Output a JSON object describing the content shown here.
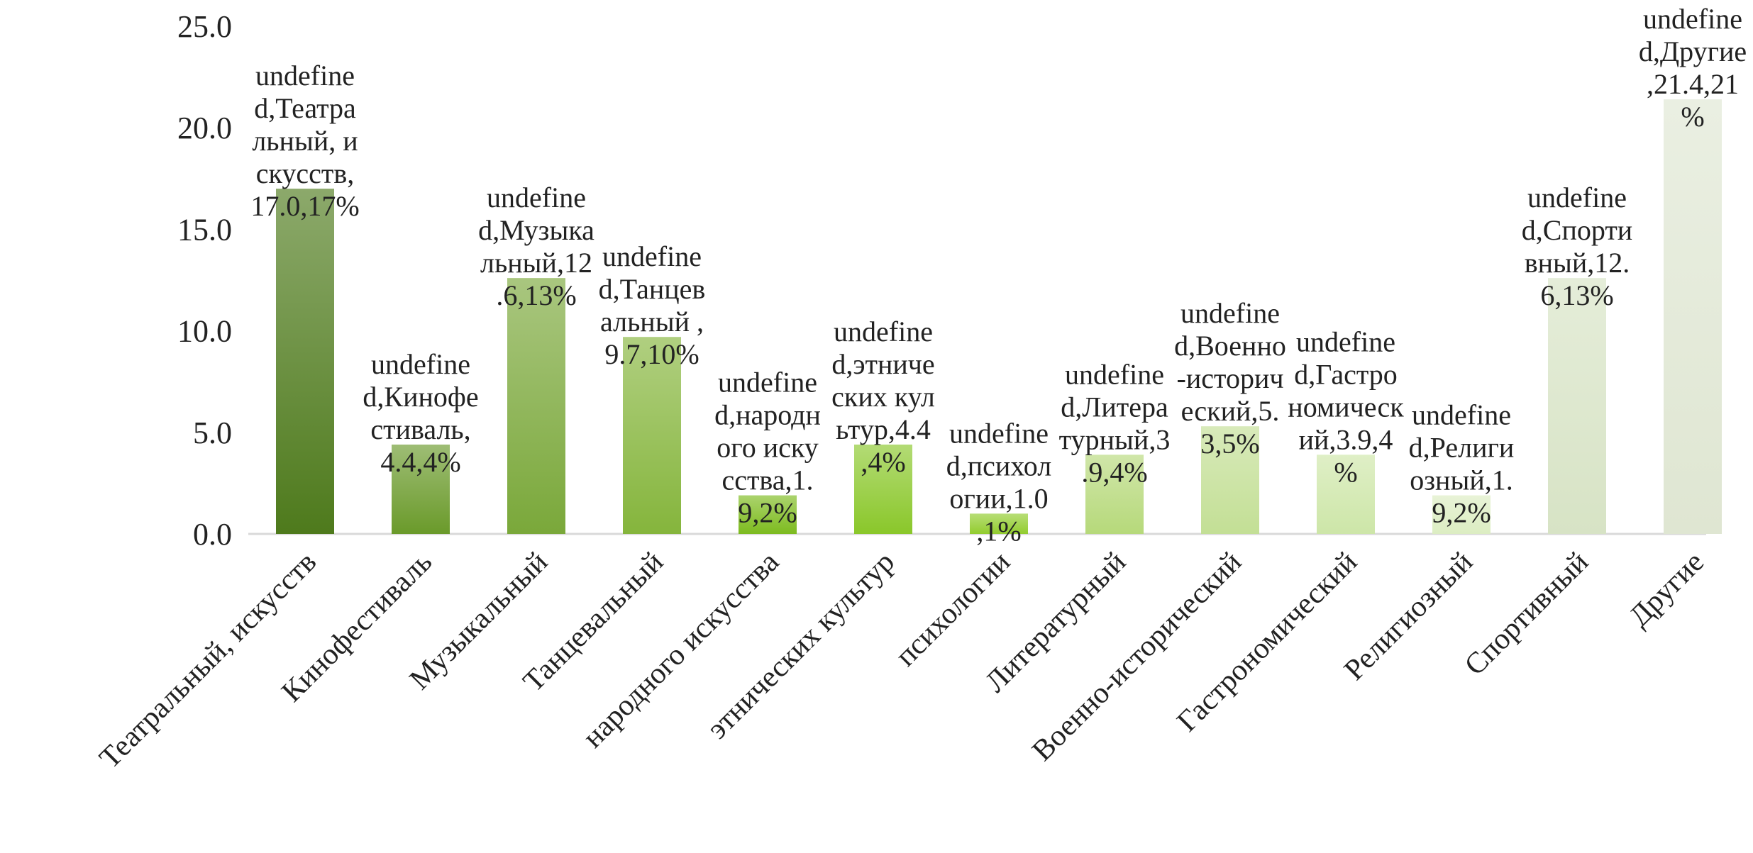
{
  "chart_data": {
    "type": "bar",
    "title": "",
    "xlabel": "",
    "ylabel": "",
    "ylim": [
      0,
      25
    ],
    "yticks": [
      "0.0",
      "5.0",
      "10.0",
      "15.0",
      "20.0",
      "25.0"
    ],
    "grid": false,
    "legend": "none",
    "categories": [
      "Театральный, искусств",
      "Кинофестиваль",
      "Музыкальный",
      "Танцевальный",
      "народного искусства",
      "этнических культур",
      "психологии",
      "Литературный",
      "Военно-исторический",
      "Гастрономический",
      "Религиозный",
      "Спортивный",
      "Другие"
    ],
    "values": [
      17.0,
      4.4,
      12.6,
      9.7,
      1.9,
      4.4,
      1.0,
      3.9,
      5.3,
      3.9,
      1.9,
      12.6,
      21.4
    ],
    "data_labels": [
      "undefined,Театральный, искусств,17.0,17%",
      "undefined,Кинофестиваль,4.4,4%",
      "undefined,Музыкальный,12.6,13%",
      "undefined,Танцевальный ,9.7,10%",
      "undefined,народного искусства,1.9,2%",
      "undefined,этнических культур,4.4,4%",
      "undefined,психологии,1.0,1%",
      "undefined,Литературный,3.9,4%",
      "undefined,Военно-исторический,5.3,5%",
      "undefined,Гастрономический,3.9,4%",
      "undefined,Религиозный,1.9,2%",
      "undefined,Спортивный,12.6,13%",
      "undefined,Другие,21.4,21%"
    ],
    "colors": [
      "#4e7a1c",
      "#6a9a2a",
      "#7aa83a",
      "#85b53c",
      "#7dbb1f",
      "#8ac72a",
      "#92cc2e",
      "#b6d97a",
      "#c3df95",
      "#cde6a8",
      "#dcedc2",
      "#d7e3c5",
      "#dfe6d2"
    ],
    "axis_color": "#d9d9d9"
  }
}
